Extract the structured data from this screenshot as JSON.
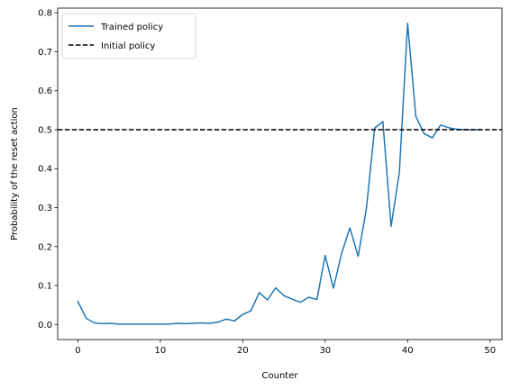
{
  "chart_data": {
    "type": "line",
    "xlabel": "Counter",
    "ylabel": "Probability of the reset action",
    "xlim": [
      -2.45,
      51.45
    ],
    "ylim": [
      -0.0387,
      0.8121
    ],
    "grid": false,
    "legend_placement": "top-left",
    "x_ticks": [
      0,
      10,
      20,
      30,
      40,
      50
    ],
    "x_tick_labels": [
      "0",
      "10",
      "20",
      "30",
      "40",
      "50"
    ],
    "y_ticks": [
      0.0,
      0.1,
      0.2,
      0.3,
      0.4,
      0.5,
      0.6,
      0.7,
      0.8
    ],
    "y_tick_labels": [
      "0.0",
      "0.1",
      "0.2",
      "0.3",
      "0.4",
      "0.5",
      "0.6",
      "0.7",
      "0.8"
    ],
    "series": [
      {
        "name": "Trained policy",
        "color": "#1f77b4",
        "style": "solid",
        "x": [
          0,
          1,
          2,
          3,
          4,
          5,
          6,
          7,
          8,
          9,
          10,
          11,
          12,
          13,
          14,
          15,
          16,
          17,
          18,
          19,
          20,
          21,
          22,
          23,
          24,
          25,
          26,
          27,
          28,
          29,
          30,
          31,
          32,
          33,
          34,
          35,
          36,
          37,
          38,
          39,
          40,
          41,
          42,
          43,
          44,
          45,
          46,
          47,
          48,
          49
        ],
        "y": [
          0.059,
          0.016,
          0.004,
          0.002,
          0.003,
          0.001,
          0.001,
          0.001,
          0.001,
          0.001,
          0.001,
          0.001,
          0.003,
          0.002,
          0.003,
          0.004,
          0.003,
          0.006,
          0.014,
          0.009,
          0.026,
          0.035,
          0.082,
          0.063,
          0.094,
          0.074,
          0.065,
          0.057,
          0.07,
          0.064,
          0.177,
          0.093,
          0.183,
          0.248,
          0.175,
          0.297,
          0.504,
          0.521,
          0.252,
          0.39,
          0.773,
          0.534,
          0.49,
          0.479,
          0.512,
          0.505,
          0.501,
          0.5,
          0.5,
          0.5
        ]
      },
      {
        "name": "Initial policy",
        "color": "#000000",
        "style": "dashed",
        "type": "hline",
        "y": 0.5
      }
    ]
  }
}
